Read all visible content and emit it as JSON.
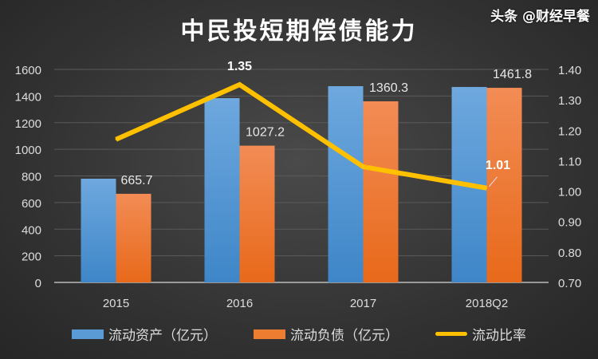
{
  "chart_data": {
    "type": "bar+line",
    "title": "中民投短期偿债能力",
    "categories": [
      "2015",
      "2016",
      "2017",
      "2018Q2"
    ],
    "series": [
      {
        "name": "流动资产（亿元）",
        "type": "bar",
        "axis": "left",
        "values": [
          779,
          1384,
          1474,
          1468
        ],
        "color": "#5b9bd5"
      },
      {
        "name": "流动负债（亿元）",
        "type": "bar",
        "axis": "left",
        "values": [
          665.7,
          1027.2,
          1360.3,
          1461.8
        ],
        "color": "#ed7d31",
        "labels": [
          "665.7",
          "1027.2",
          "1360.3",
          "1461.8"
        ]
      },
      {
        "name": "流动比率",
        "type": "line",
        "axis": "right",
        "values": [
          1.17,
          1.35,
          1.08,
          1.01
        ],
        "color": "#ffc000",
        "labels": {
          "1": "1.35",
          "3": "1.01"
        }
      }
    ],
    "y_left": {
      "range": [
        0,
        1600
      ],
      "ticks": [
        "0",
        "200",
        "400",
        "600",
        "800",
        "1000",
        "1200",
        "1400",
        "1600"
      ]
    },
    "y_right": {
      "range": [
        0.7,
        1.4
      ],
      "ticks": [
        "0.70",
        "0.80",
        "0.90",
        "1.00",
        "1.10",
        "1.20",
        "1.30",
        "1.40"
      ]
    },
    "grid": true,
    "legend": "bottom"
  },
  "watermark": "头条 @财经早餐"
}
